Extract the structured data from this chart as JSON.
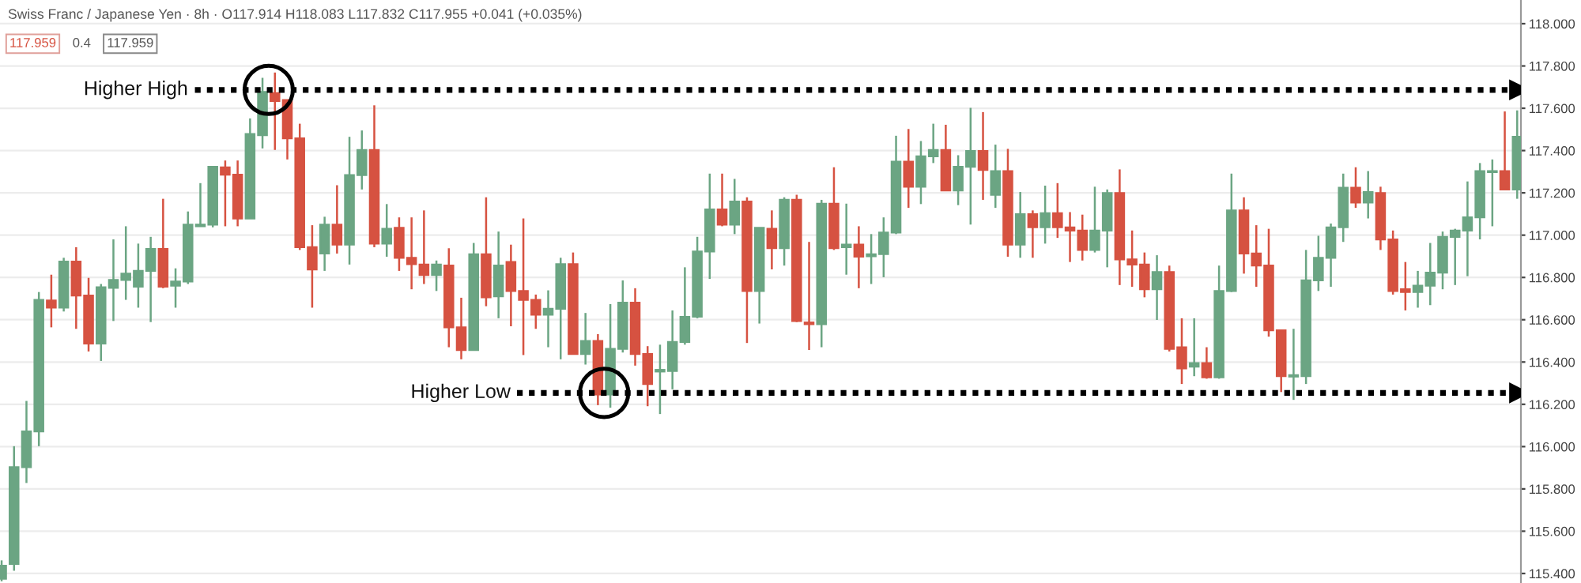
{
  "chart_data": {
    "type": "candlestick",
    "title": "Swiss Franc / Japanese Yen · 8h · O117.914 H118.083 L117.832 C117.955 +0.041 (+0.035%)",
    "annotations": [
      "117.959",
      "0.4",
      "117.959"
    ],
    "categories": [
      null,
      null,
      null,
      null,
      null,
      null,
      null,
      null,
      null,
      null,
      null,
      null,
      null,
      null,
      null,
      null,
      null,
      null,
      null,
      null,
      null,
      null,
      null,
      null,
      null,
      null,
      null,
      null,
      null,
      null,
      null,
      null,
      null,
      null,
      null,
      null,
      null,
      null,
      null,
      null,
      null,
      null,
      null,
      null,
      null,
      null,
      null,
      null,
      null,
      null,
      null,
      null,
      null,
      null,
      null,
      null,
      null,
      null,
      null,
      null,
      null,
      null,
      null,
      null,
      null,
      null,
      null,
      null,
      null,
      null,
      null,
      null,
      null,
      null,
      null,
      null,
      null,
      null,
      null,
      null,
      null,
      null,
      null,
      null,
      null,
      null,
      null,
      null,
      null,
      null,
      null,
      null,
      null,
      null,
      null,
      null,
      null,
      null,
      null,
      null,
      null,
      null,
      null,
      null,
      null,
      null,
      null,
      null,
      null,
      null,
      null,
      null,
      null,
      null,
      null,
      null,
      null,
      null,
      null,
      null,
      null,
      null,
      null
    ],
    "ohlc": [
      [
        115.375,
        115.462,
        115.363,
        115.437
      ],
      [
        115.445,
        116.002,
        115.413,
        115.903
      ],
      [
        115.903,
        116.216,
        115.828,
        116.072
      ],
      [
        116.072,
        116.731,
        116.002,
        116.694
      ],
      [
        116.691,
        116.813,
        116.564,
        116.657
      ],
      [
        116.657,
        116.893,
        116.639,
        116.875
      ],
      [
        116.875,
        116.943,
        116.557,
        116.714
      ],
      [
        116.714,
        116.798,
        116.45,
        116.487
      ],
      [
        116.487,
        116.769,
        116.405,
        116.754
      ],
      [
        116.751,
        116.98,
        116.594,
        116.788
      ],
      [
        116.788,
        117.042,
        116.694,
        116.818
      ],
      [
        116.756,
        116.96,
        116.657,
        116.831
      ],
      [
        116.831,
        116.992,
        116.589,
        116.935
      ],
      [
        116.935,
        117.172,
        116.749,
        116.756
      ],
      [
        116.761,
        116.843,
        116.657,
        116.781
      ],
      [
        116.781,
        117.112,
        116.769,
        117.05
      ],
      [
        117.042,
        117.246,
        117.042,
        117.05
      ],
      [
        117.05,
        117.323,
        117.037,
        117.323
      ],
      [
        117.321,
        117.353,
        117.042,
        117.286
      ],
      [
        117.286,
        117.353,
        117.042,
        117.079
      ],
      [
        117.079,
        117.552,
        117.079,
        117.478
      ],
      [
        117.473,
        117.744,
        117.41,
        117.677
      ],
      [
        117.672,
        117.769,
        117.403,
        117.634
      ],
      [
        117.639,
        117.639,
        117.358,
        117.458
      ],
      [
        117.458,
        117.527,
        116.93,
        116.943
      ],
      [
        116.943,
        117.047,
        116.657,
        116.838
      ],
      [
        116.913,
        117.087,
        116.831,
        117.05
      ],
      [
        117.05,
        117.236,
        116.913,
        116.955
      ],
      [
        116.955,
        117.465,
        116.861,
        117.284
      ],
      [
        117.284,
        117.495,
        117.216,
        117.403
      ],
      [
        117.403,
        117.614,
        116.943,
        116.96
      ],
      [
        116.96,
        117.147,
        116.898,
        117.03
      ],
      [
        117.035,
        117.084,
        116.831,
        116.893
      ],
      [
        116.893,
        117.084,
        116.744,
        116.863
      ],
      [
        116.861,
        117.117,
        116.769,
        116.811
      ],
      [
        116.811,
        116.88,
        116.736,
        116.861
      ],
      [
        116.856,
        116.938,
        116.47,
        116.564
      ],
      [
        116.564,
        116.704,
        116.413,
        116.457
      ],
      [
        116.457,
        116.963,
        116.455,
        116.91
      ],
      [
        116.91,
        117.179,
        116.664,
        116.706
      ],
      [
        116.711,
        117.017,
        116.607,
        116.856
      ],
      [
        116.873,
        116.955,
        116.569,
        116.736
      ],
      [
        116.736,
        117.079,
        116.433,
        116.694
      ],
      [
        116.694,
        116.719,
        116.557,
        116.624
      ],
      [
        116.624,
        116.739,
        116.47,
        116.652
      ],
      [
        116.652,
        116.893,
        116.413,
        116.863
      ],
      [
        116.863,
        116.918,
        116.438,
        116.438
      ],
      [
        116.438,
        116.632,
        116.388,
        116.5
      ],
      [
        116.5,
        116.532,
        116.196,
        116.246
      ],
      [
        116.246,
        116.674,
        116.184,
        116.462
      ],
      [
        116.462,
        116.786,
        116.445,
        116.681
      ],
      [
        116.681,
        116.749,
        116.383,
        116.438
      ],
      [
        116.438,
        116.475,
        116.191,
        116.296
      ],
      [
        116.355,
        116.482,
        116.154,
        116.363
      ],
      [
        116.358,
        116.644,
        116.271,
        116.495
      ],
      [
        116.495,
        116.848,
        116.482,
        116.614
      ],
      [
        116.614,
        116.992,
        116.607,
        116.923
      ],
      [
        116.923,
        117.291,
        116.793,
        117.122
      ],
      [
        117.122,
        117.291,
        117.042,
        117.05
      ],
      [
        117.05,
        117.266,
        117.005,
        117.159
      ],
      [
        117.159,
        117.179,
        116.49,
        116.736
      ],
      [
        116.736,
        117.035,
        116.582,
        117.035
      ],
      [
        117.03,
        117.117,
        116.838,
        116.938
      ],
      [
        116.938,
        117.179,
        116.856,
        117.167
      ],
      [
        117.167,
        117.191,
        116.589,
        116.594
      ],
      [
        116.587,
        116.968,
        116.457,
        116.579
      ],
      [
        116.579,
        117.167,
        116.47,
        117.149
      ],
      [
        117.149,
        117.321,
        116.93,
        116.938
      ],
      [
        116.943,
        117.149,
        116.813,
        116.955
      ],
      [
        116.955,
        117.042,
        116.749,
        116.898
      ],
      [
        116.9,
        117.005,
        116.769,
        116.91
      ],
      [
        116.91,
        117.084,
        116.801,
        117.012
      ],
      [
        117.012,
        117.47,
        117.005,
        117.348
      ],
      [
        117.348,
        117.502,
        117.129,
        117.229
      ],
      [
        117.229,
        117.445,
        117.147,
        117.373
      ],
      [
        117.373,
        117.527,
        117.341,
        117.403
      ],
      [
        117.403,
        117.522,
        117.211,
        117.211
      ],
      [
        117.211,
        117.378,
        117.142,
        117.323
      ],
      [
        117.323,
        117.602,
        117.05,
        117.398
      ],
      [
        117.398,
        117.582,
        117.167,
        117.308
      ],
      [
        117.191,
        117.428,
        117.129,
        117.303
      ],
      [
        117.303,
        117.408,
        116.898,
        116.955
      ],
      [
        116.955,
        117.204,
        116.893,
        117.099
      ],
      [
        117.099,
        117.117,
        116.893,
        117.037
      ],
      [
        117.037,
        117.234,
        116.96,
        117.104
      ],
      [
        117.104,
        117.246,
        116.987,
        117.037
      ],
      [
        117.037,
        117.109,
        116.873,
        117.022
      ],
      [
        117.022,
        117.097,
        116.88,
        116.93
      ],
      [
        116.93,
        117.229,
        116.918,
        117.022
      ],
      [
        117.022,
        117.216,
        116.848,
        117.199
      ],
      [
        117.199,
        117.311,
        116.764,
        116.885
      ],
      [
        116.885,
        117.022,
        116.756,
        116.861
      ],
      [
        116.861,
        116.918,
        116.706,
        116.744
      ],
      [
        116.744,
        116.905,
        116.599,
        116.826
      ],
      [
        116.826,
        116.856,
        116.45,
        116.462
      ],
      [
        116.47,
        116.607,
        116.296,
        116.37
      ],
      [
        116.378,
        116.607,
        116.333,
        116.395
      ],
      [
        116.395,
        116.47,
        116.321,
        116.328
      ],
      [
        116.328,
        116.856,
        116.321,
        116.736
      ],
      [
        116.736,
        117.291,
        116.731,
        117.117
      ],
      [
        117.117,
        117.179,
        116.818,
        116.913
      ],
      [
        116.913,
        117.047,
        116.756,
        116.856
      ],
      [
        116.856,
        117.03,
        116.52,
        116.55
      ],
      [
        116.55,
        116.55,
        116.258,
        116.333
      ],
      [
        116.331,
        116.557,
        116.221,
        116.338
      ],
      [
        116.333,
        116.93,
        116.296,
        116.786
      ],
      [
        116.786,
        116.997,
        116.736,
        116.893
      ],
      [
        116.893,
        117.055,
        116.756,
        117.037
      ],
      [
        117.037,
        117.291,
        116.968,
        117.224
      ],
      [
        117.224,
        117.321,
        117.129,
        117.154
      ],
      [
        117.154,
        117.303,
        117.079,
        117.204
      ],
      [
        117.199,
        117.229,
        116.93,
        116.98
      ],
      [
        116.98,
        117.022,
        116.719,
        116.736
      ],
      [
        116.744,
        116.873,
        116.644,
        116.731
      ],
      [
        116.731,
        116.831,
        116.657,
        116.761
      ],
      [
        116.761,
        116.963,
        116.669,
        116.823
      ],
      [
        116.823,
        117.017,
        116.744,
        116.992
      ],
      [
        116.992,
        117.03,
        116.764,
        117.022
      ],
      [
        117.022,
        117.254,
        116.806,
        117.084
      ],
      [
        117.084,
        117.341,
        116.98,
        117.303
      ],
      [
        117.298,
        117.358,
        117.042,
        117.303
      ],
      [
        117.303,
        117.585,
        117.216,
        117.216
      ],
      [
        117.216,
        117.59,
        117.172,
        117.465
      ]
    ],
    "colors": [
      "#6ba583",
      "#6ba583",
      "#6ba583",
      "#6ba583",
      "#d65241",
      "#6ba583",
      "#d65241",
      "#d65241",
      "#6ba583",
      "#6ba583",
      "#6ba583",
      "#6ba583",
      "#6ba583",
      "#d65241",
      "#6ba583",
      "#6ba583",
      "#6ba583",
      "#6ba583",
      "#d65241",
      "#d65241",
      "#6ba583",
      "#6ba583",
      "#d65241",
      "#d65241",
      "#d65241",
      "#d65241",
      "#6ba583",
      "#d65241",
      "#6ba583",
      "#6ba583",
      "#d65241",
      "#6ba583",
      "#d65241",
      "#d65241",
      "#d65241",
      "#6ba583",
      "#d65241",
      "#d65241",
      "#6ba583",
      "#d65241",
      "#6ba583",
      "#d65241",
      "#d65241",
      "#d65241",
      "#6ba583",
      "#6ba583",
      "#d65241",
      "#6ba583",
      "#d65241",
      "#6ba583",
      "#6ba583",
      "#d65241",
      "#d65241",
      "#6ba583",
      "#6ba583",
      "#6ba583",
      "#6ba583",
      "#6ba583",
      "#d65241",
      "#6ba583",
      "#d65241",
      "#6ba583",
      "#d65241",
      "#6ba583",
      "#d65241",
      "#d65241",
      "#6ba583",
      "#d65241",
      "#6ba583",
      "#d65241",
      "#6ba583",
      "#6ba583",
      "#6ba583",
      "#d65241",
      "#6ba583",
      "#6ba583",
      "#d65241",
      "#6ba583",
      "#6ba583",
      "#d65241",
      "#6ba583",
      "#d65241",
      "#6ba583",
      "#d65241",
      "#6ba583",
      "#d65241",
      "#d65241",
      "#d65241",
      "#6ba583",
      "#6ba583",
      "#d65241",
      "#d65241",
      "#d65241",
      "#6ba583",
      "#d65241",
      "#d65241",
      "#6ba583",
      "#d65241",
      "#6ba583",
      "#6ba583",
      "#d65241",
      "#d65241",
      "#d65241",
      "#d65241",
      "#6ba583",
      "#6ba583",
      "#6ba583",
      "#6ba583",
      "#6ba583",
      "#d65241",
      "#6ba583",
      "#d65241",
      "#d65241",
      "#d65241",
      "#6ba583",
      "#6ba583",
      "#6ba583",
      "#6ba583",
      "#6ba583",
      "#6ba583",
      "#6ba583",
      "#d65241",
      "#6ba583"
    ],
    "ylim": [
      115.355,
      118.112
    ],
    "yticks": [
      {
        "value": 115.4,
        "label": "115.400"
      },
      {
        "value": 115.6,
        "label": "115.600"
      },
      {
        "value": 115.8,
        "label": "115.800"
      },
      {
        "value": 116.0,
        "label": "116.000"
      },
      {
        "value": 116.2,
        "label": "116.200"
      },
      {
        "value": 116.4,
        "label": "116.400"
      },
      {
        "value": 116.6,
        "label": "116.600"
      },
      {
        "value": 116.8,
        "label": "116.800"
      },
      {
        "value": 117.0,
        "label": "117.000"
      },
      {
        "value": 117.2,
        "label": "117.200"
      },
      {
        "value": 117.4,
        "label": "117.400"
      },
      {
        "value": 117.6,
        "label": "117.600"
      },
      {
        "value": 117.8,
        "label": "117.800"
      },
      {
        "value": 118.0,
        "label": "118.000"
      }
    ],
    "ref_lines": [
      {
        "axis": "y",
        "value": 117.687,
        "label": "Higher High",
        "color": "#000000",
        "line_style": "dotted"
      },
      {
        "axis": "y",
        "value": 116.254,
        "label": "Higher Low",
        "color": "#000000",
        "line_style": "dotted"
      }
    ],
    "grid": "y",
    "tick_labels": "y"
  }
}
